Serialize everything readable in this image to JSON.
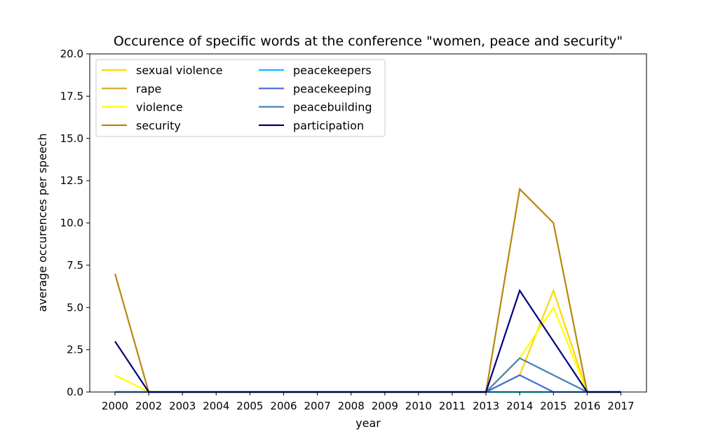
{
  "chart_data": {
    "type": "line",
    "title": "Occurence of specific words at the conference \"women, peace and security\"",
    "xlabel": "year",
    "ylabel": "average occurences per speech",
    "ylim": [
      0,
      20
    ],
    "yticks": [
      "0.0",
      "2.5",
      "5.0",
      "7.5",
      "10.0",
      "12.5",
      "15.0",
      "17.5",
      "20.0"
    ],
    "categories": [
      "2000",
      "2002",
      "2003",
      "2004",
      "2005",
      "2006",
      "2007",
      "2008",
      "2009",
      "2010",
      "2011",
      "2013",
      "2014",
      "2015",
      "2016",
      "2017"
    ],
    "legend_position": "upper-left",
    "grid": false,
    "series": [
      {
        "name": "sexual violence",
        "color": "#FFD700",
        "values": [
          0,
          0,
          0,
          0,
          0,
          0,
          0,
          0,
          0,
          0,
          0,
          0,
          1,
          6,
          0,
          0
        ]
      },
      {
        "name": "rape",
        "color": "#DAA520",
        "values": [
          0,
          0,
          0,
          0,
          0,
          0,
          0,
          0,
          0,
          0,
          0,
          0,
          0,
          0,
          0,
          0
        ]
      },
      {
        "name": "violence",
        "color": "#FFFF00",
        "values": [
          1,
          0,
          0,
          0,
          0,
          0,
          0,
          0,
          0,
          0,
          0,
          0,
          2,
          5,
          0,
          0
        ]
      },
      {
        "name": "security",
        "color": "#B8860B",
        "values": [
          7,
          0,
          0,
          0,
          0,
          0,
          0,
          0,
          0,
          0,
          0,
          0,
          12,
          10,
          0,
          0
        ]
      },
      {
        "name": "peacekeepers",
        "color": "#00BFFF",
        "values": [
          0,
          0,
          0,
          0,
          0,
          0,
          0,
          0,
          0,
          0,
          0,
          0,
          0,
          0,
          0,
          0
        ]
      },
      {
        "name": "peacekeeping",
        "color": "#4169E1",
        "values": [
          0,
          0,
          0,
          0,
          0,
          0,
          0,
          0,
          0,
          0,
          0,
          0,
          1,
          0,
          0,
          0
        ]
      },
      {
        "name": "peacebuilding",
        "color": "#4682B4",
        "values": [
          0,
          0,
          0,
          0,
          0,
          0,
          0,
          0,
          0,
          0,
          0,
          0,
          2,
          1,
          0,
          0
        ]
      },
      {
        "name": "participation",
        "color": "#000080",
        "values": [
          3,
          0,
          0,
          0,
          0,
          0,
          0,
          0,
          0,
          0,
          0,
          0,
          6,
          3,
          0,
          0
        ]
      }
    ]
  }
}
